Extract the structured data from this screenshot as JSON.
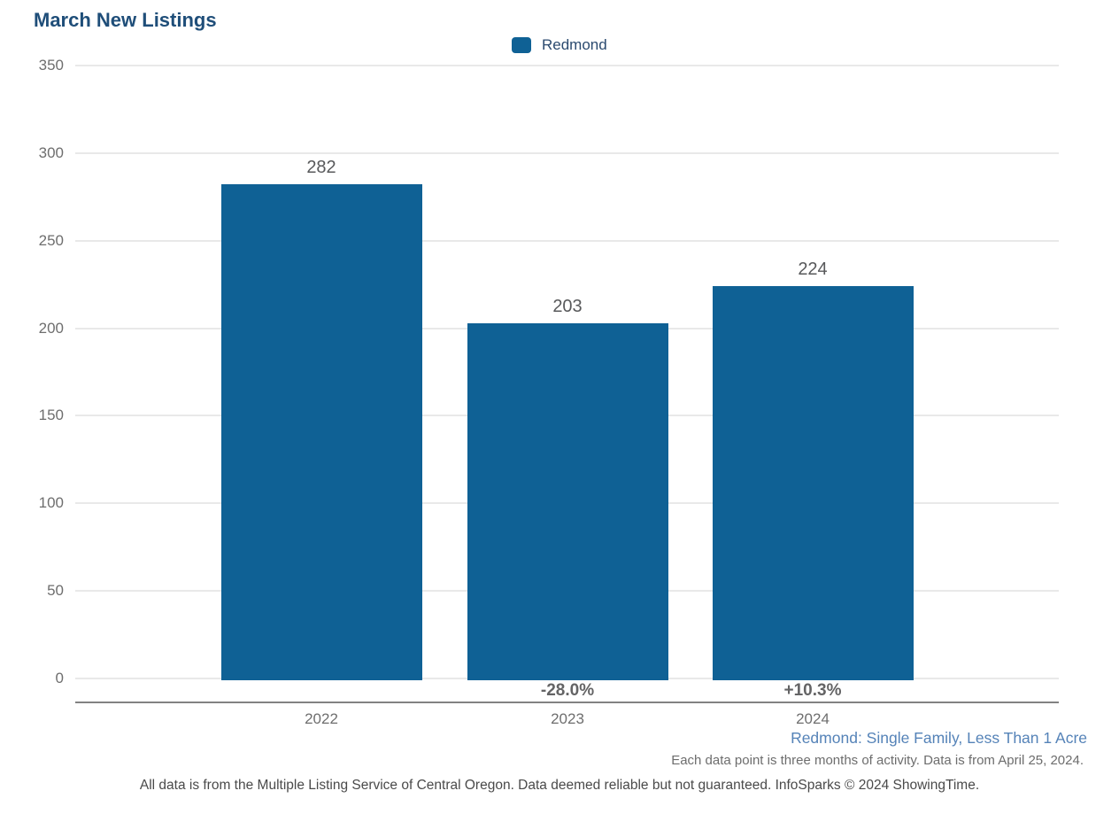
{
  "chart_data": {
    "type": "bar",
    "title": "March New Listings",
    "categories": [
      "2022",
      "2023",
      "2024"
    ],
    "series": [
      {
        "name": "Redmond",
        "values": [
          282,
          203,
          224
        ]
      }
    ],
    "value_labels": [
      "282",
      "203",
      "224"
    ],
    "pct_change_labels": [
      "",
      "-28.0%",
      "+10.3%"
    ],
    "yticks": [
      0,
      50,
      100,
      150,
      200,
      250,
      300,
      350
    ],
    "ylim": [
      0,
      350
    ],
    "grid": "horizontal",
    "bar_color": "#0f6195",
    "legend": {
      "position": "top-center",
      "entries": [
        {
          "label": "Redmond",
          "color": "#0f6195"
        }
      ]
    }
  },
  "footer": {
    "series_description": "Redmond: Single Family, Less Than 1 Acre",
    "data_note": "Each data point is three months of activity. Data is from April 25, 2024.",
    "disclaimer": "All data is from the Multiple Listing Service of Central Oregon. Data deemed reliable but not guaranteed. InfoSparks © 2024 ShowingTime."
  },
  "colors": {
    "title": "#1f4e79",
    "bar": "#0f6195",
    "subtitle": "#5583b8",
    "gridline": "#e9e9e9",
    "axis": "#828282"
  }
}
